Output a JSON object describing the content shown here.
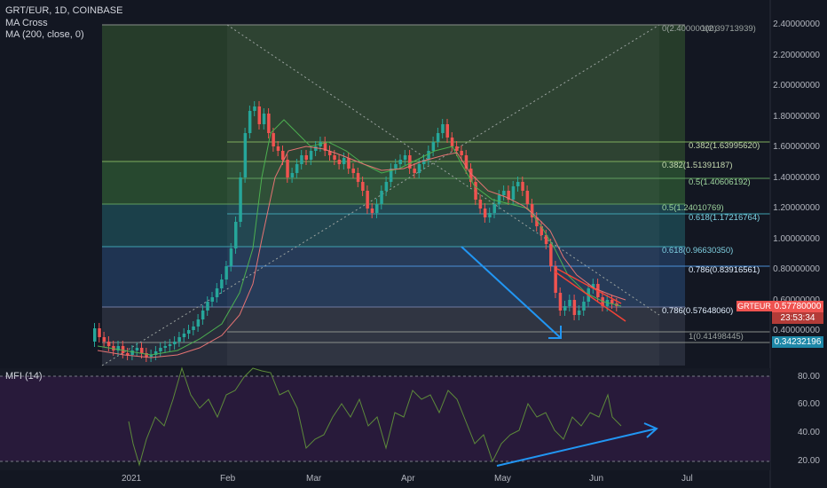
{
  "header": {
    "symbol_line": "GRT/EUR, 1D, COINBASE",
    "indicator_1": "MA Cross",
    "indicator_2": "MA (200, close, 0)"
  },
  "price_axis": [
    "2.40000000",
    "2.20000000",
    "2.00000000",
    "1.80000000",
    "1.60000000",
    "1.40000000",
    "1.20000000",
    "1.00000000",
    "0.80000000",
    "0.60000000",
    "0.40000000"
  ],
  "mfi_axis": [
    "80.00",
    "60.00",
    "40.00",
    "20.00"
  ],
  "time_axis": [
    "2021",
    "Feb",
    "Mar",
    "Apr",
    "May",
    "Jun",
    "Jul"
  ],
  "mfi_label": "MFI (14)",
  "fib_outer": [
    "0(2.40000000)",
    "0.382(1.63995620)",
    "0.5(1.40606192)",
    "0.618(1.17216764)",
    "0.786(0.83916561)"
  ],
  "fib_inner": [
    "0.382(1.51391187)",
    "0.5(1.24010769)",
    "0.618(0.96630350)",
    "0.786(0.57648060)",
    "1(0.41498445)"
  ],
  "fib_top_right": "1(2.39713939)",
  "current_price": {
    "symbol": "GRTEUR",
    "price": "0.57780000",
    "countdown": "23:53:34"
  },
  "low_tag": "0.34232196",
  "colors": {
    "up": "#26a69a",
    "down": "#ef5350",
    "fib_green": "#2e7d32",
    "fib_blue": "#1565c0",
    "mfi_bg": "#2a1b3d",
    "arrow": "#2196f3"
  }
}
